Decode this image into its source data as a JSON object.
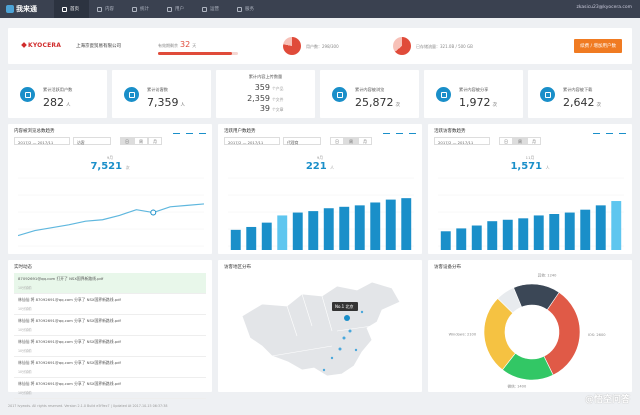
{
  "app": {
    "logo": "我来通",
    "user": "zkasicu23@kyocera.com"
  },
  "nav": [
    {
      "label": "首页",
      "icon": "home-icon"
    },
    {
      "label": "内容",
      "icon": "content-icon"
    },
    {
      "label": "统计",
      "icon": "stats-icon"
    },
    {
      "label": "用户",
      "icon": "user-icon"
    },
    {
      "label": "运营",
      "icon": "ops-icon"
    },
    {
      "label": "服务",
      "icon": "service-icon"
    }
  ],
  "account": {
    "brand": "KYOCERA",
    "company": "上海京瓷贸易有限公司",
    "days_label": "有效期剩余",
    "days_value": "32",
    "days_unit": "天",
    "days_fraction": 0.92,
    "users_text": "用户数：298/300",
    "storage_text": "已存储流量：321.0B / 500 GB",
    "renew_button": "续费 / 增加用户数"
  },
  "kpis": [
    {
      "label": "累计活跃用户数",
      "value": "282",
      "unit": "人",
      "icon": "users-icon"
    },
    {
      "label": "累计访客数",
      "value": "7,359",
      "unit": "人",
      "icon": "visitor-icon"
    },
    {
      "label": "累计内容上传数量",
      "rows": [
        {
          "n": "359",
          "u": "个产品"
        },
        {
          "n": "2,359",
          "u": "个文件"
        },
        {
          "n": "39",
          "u": "个文章"
        }
      ]
    },
    {
      "label": "累计内容被浏览",
      "value": "25,872",
      "unit": "次",
      "icon": "eye-icon"
    },
    {
      "label": "累计内容被分享",
      "value": "1,972",
      "unit": "次",
      "icon": "share-icon"
    },
    {
      "label": "累计内容被下载",
      "value": "2,642",
      "unit": "次",
      "icon": "download-icon"
    }
  ],
  "charts": [
    {
      "title": "内容被浏览总数趋势",
      "date": "2017/2 — 2017/11",
      "select": "访客",
      "seg": [
        "日",
        "周",
        "月"
      ],
      "highlight_label": "9月",
      "big_value": "7,521",
      "big_unit": "次"
    },
    {
      "title": "活跃用户数趋势",
      "date": "2017/2 — 2017/11",
      "select": "代理商",
      "seg": [
        "日",
        "周",
        "月"
      ],
      "highlight_label": "9月",
      "big_value": "221",
      "big_unit": "人"
    },
    {
      "title": "活跃访客数趋势",
      "date": "2017/2 — 2017/11",
      "select": "",
      "seg": [
        "日",
        "周",
        "月"
      ],
      "highlight_label": "11月",
      "big_value": "1,571",
      "big_unit": "人"
    }
  ],
  "chart_data": [
    {
      "type": "line",
      "values": [
        20,
        27,
        31,
        35,
        40,
        42,
        48,
        56,
        52,
        60,
        62,
        64
      ],
      "ylim": [
        0,
        100
      ],
      "highlight_index": 8
    },
    {
      "type": "bar",
      "values": [
        28,
        32,
        38,
        48,
        52,
        54,
        58,
        60,
        62,
        66,
        70,
        72
      ],
      "ylim": [
        0,
        100
      ],
      "highlight_index": 3
    },
    {
      "type": "bar",
      "values": [
        26,
        30,
        34,
        40,
        42,
        44,
        48,
        50,
        52,
        56,
        62,
        68
      ],
      "ylim": [
        0,
        100
      ],
      "highlight_index": 11
    },
    {
      "type": "pie",
      "slices": [
        {
          "label": "IOS: 2600",
          "value": 2600,
          "color": "#e05a47"
        },
        {
          "label": "微信: 1400",
          "value": 1400,
          "color": "#32c765"
        },
        {
          "label": "Windows: 2100",
          "value": 2100,
          "color": "#f5c242"
        },
        {
          "label": "",
          "value": 500,
          "color": "#e8ebee"
        },
        {
          "label": "其他: 1240",
          "value": 1240,
          "color": "#3b4756"
        }
      ]
    }
  ],
  "feed": {
    "title": "实时动态",
    "items": [
      {
        "text": "87092691@qq.com 打开了 NSX国界新路线.pdf",
        "time": "10分钟前"
      },
      {
        "text": "林仙仙 将 87092691@qq.com 分享了 NSX国界新路线.pdf",
        "time": "10分钟前"
      },
      {
        "text": "林仙仙 将 87092691@qq.com 分享了 NSX国界新路线.pdf",
        "time": "10分钟前"
      },
      {
        "text": "林仙仙 将 87092691@qq.com 分享了 NSX国界新路线.pdf",
        "time": "10分钟前"
      },
      {
        "text": "林仙仙 将 87092691@qq.com 分享了 NSX国界新路线.pdf",
        "time": "10分钟前"
      },
      {
        "text": "林仙仙 将 87092691@qq.com 分享了 NSX国界新路线.pdf",
        "time": "10分钟前"
      }
    ]
  },
  "map": {
    "title": "访客地区分布",
    "tooltip_rank": "No.1",
    "tooltip_city": "北京"
  },
  "device": {
    "title": "访客设备分布"
  },
  "footer": "2017 Ivyexds. All rights reserved. Version 2.1.0 Build e5f9ec7 | Updated At 2017-10-15 06:37:38",
  "watermark": "@悟空问答"
}
